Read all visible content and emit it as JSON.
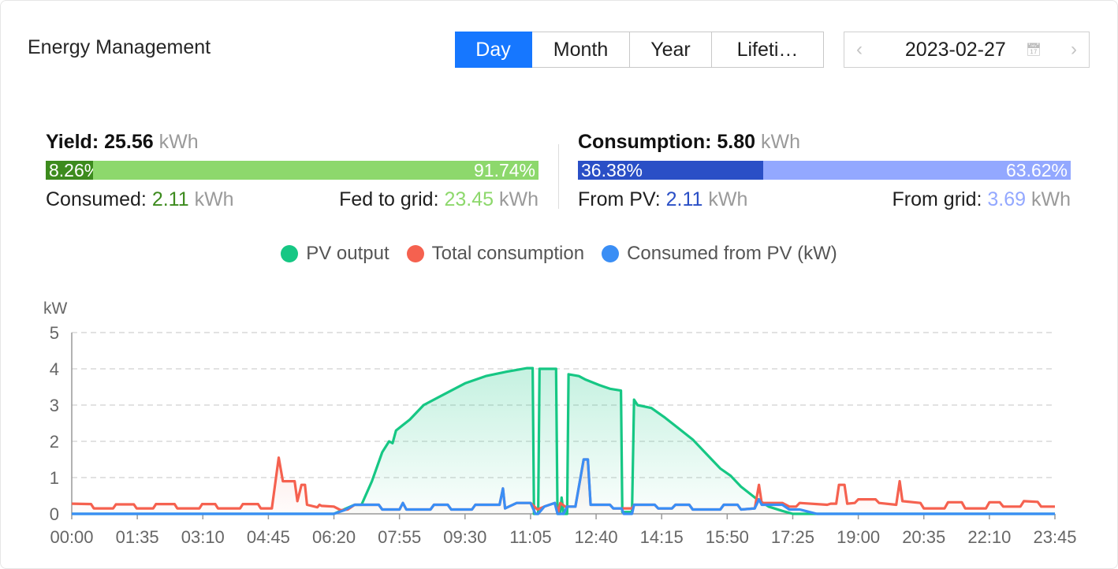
{
  "header": {
    "title": "Energy Management",
    "periods": [
      "Day",
      "Month",
      "Year",
      "Lifeti…"
    ],
    "active_period": "Day",
    "date": "2023-02-27",
    "prev_icon": "chevron-left-icon",
    "next_icon": "chevron-right-icon",
    "calendar_icon": "calendar-icon"
  },
  "yield": {
    "label": "Yield:",
    "value": "25.56",
    "unit": "kWh",
    "pct_consumed": "8.26%",
    "pct_fed": "91.74%",
    "consumed_fraction": 0.0826,
    "consumed_label": "Consumed:",
    "consumed_value": "2.11",
    "consumed_unit": "kWh",
    "fed_label": "Fed to grid:",
    "fed_value": "23.45",
    "fed_unit": "kWh",
    "colors": {
      "consumed": "#3d8b1e",
      "fed": "#8dd86c"
    }
  },
  "consumption": {
    "label": "Consumption:",
    "value": "5.80",
    "unit": "kWh",
    "pct_pv": "36.38%",
    "pct_grid": "63.62%",
    "pv_fraction": 0.3638,
    "pv_label": "From PV:",
    "pv_value": "2.11",
    "pv_unit": "kWh",
    "grid_label": "From grid:",
    "grid_value": "3.69",
    "grid_unit": "kWh",
    "colors": {
      "pv": "#2a4fc6",
      "grid": "#93a8ff"
    }
  },
  "chart_data": {
    "type": "line",
    "ylabel": "kW",
    "ylim": [
      0,
      5
    ],
    "yticks": [
      "0",
      "1",
      "2",
      "3",
      "4",
      "5"
    ],
    "xticks": [
      "00:00",
      "01:35",
      "03:10",
      "04:45",
      "06:20",
      "07:55",
      "09:30",
      "11:05",
      "12:40",
      "14:15",
      "15:50",
      "17:25",
      "19:00",
      "20:35",
      "22:10",
      "23:45"
    ],
    "xlim": [
      "00:00",
      "23:45"
    ],
    "grid": true,
    "legend": "top-center",
    "series": [
      {
        "name": "PV output",
        "color": "#16c784",
        "area": true,
        "points": [
          [
            "00:00",
            0
          ],
          [
            "06:20",
            0
          ],
          [
            "06:50",
            0.25
          ],
          [
            "07:00",
            0.25
          ],
          [
            "07:15",
            0.9
          ],
          [
            "07:30",
            1.7
          ],
          [
            "07:40",
            2.0
          ],
          [
            "07:45",
            1.95
          ],
          [
            "07:50",
            2.3
          ],
          [
            "08:10",
            2.6
          ],
          [
            "08:30",
            3.0
          ],
          [
            "09:00",
            3.3
          ],
          [
            "09:30",
            3.6
          ],
          [
            "10:00",
            3.8
          ],
          [
            "10:30",
            3.92
          ],
          [
            "11:00",
            4.02
          ],
          [
            "11:08",
            4.02
          ],
          [
            "11:10",
            0
          ],
          [
            "11:16",
            0
          ],
          [
            "11:18",
            4.0
          ],
          [
            "11:42",
            4.0
          ],
          [
            "11:44",
            0
          ],
          [
            "11:48",
            0
          ],
          [
            "11:50",
            0.45
          ],
          [
            "11:53",
            0
          ],
          [
            "11:58",
            0
          ],
          [
            "12:00",
            3.85
          ],
          [
            "12:15",
            3.8
          ],
          [
            "12:25",
            3.7
          ],
          [
            "12:45",
            3.55
          ],
          [
            "13:00",
            3.45
          ],
          [
            "13:16",
            3.4
          ],
          [
            "13:18",
            0.05
          ],
          [
            "13:32",
            0.05
          ],
          [
            "13:35",
            3.15
          ],
          [
            "13:40",
            3.0
          ],
          [
            "14:00",
            2.92
          ],
          [
            "14:20",
            2.65
          ],
          [
            "14:40",
            2.35
          ],
          [
            "15:00",
            2.05
          ],
          [
            "15:20",
            1.65
          ],
          [
            "15:40",
            1.25
          ],
          [
            "15:55",
            1.05
          ],
          [
            "16:10",
            0.75
          ],
          [
            "16:30",
            0.45
          ],
          [
            "16:50",
            0.2
          ],
          [
            "17:10",
            0.08
          ],
          [
            "17:25",
            0
          ],
          [
            "23:45",
            0
          ]
        ]
      },
      {
        "name": "Total consumption",
        "color": "#f5614f",
        "area": true,
        "points": [
          [
            "00:00",
            0.28
          ],
          [
            "00:28",
            0.27
          ],
          [
            "00:32",
            0.15
          ],
          [
            "01:00",
            0.15
          ],
          [
            "01:04",
            0.26
          ],
          [
            "01:30",
            0.26
          ],
          [
            "01:34",
            0.15
          ],
          [
            "01:58",
            0.15
          ],
          [
            "02:02",
            0.27
          ],
          [
            "02:29",
            0.27
          ],
          [
            "02:33",
            0.15
          ],
          [
            "03:05",
            0.15
          ],
          [
            "03:09",
            0.27
          ],
          [
            "03:28",
            0.27
          ],
          [
            "03:32",
            0.15
          ],
          [
            "04:04",
            0.15
          ],
          [
            "04:08",
            0.27
          ],
          [
            "04:30",
            0.27
          ],
          [
            "04:34",
            0.15
          ],
          [
            "04:50",
            0.15
          ],
          [
            "05:00",
            1.55
          ],
          [
            "05:06",
            0.9
          ],
          [
            "05:23",
            0.9
          ],
          [
            "05:27",
            0.35
          ],
          [
            "05:33",
            0.8
          ],
          [
            "05:38",
            0.8
          ],
          [
            "05:41",
            0.25
          ],
          [
            "05:56",
            0.18
          ],
          [
            "05:59",
            0.25
          ],
          [
            "06:02",
            0.22
          ],
          [
            "06:20",
            0.2
          ],
          [
            "06:30",
            0.1
          ],
          [
            "06:40",
            0.12
          ],
          [
            "06:50",
            0.25
          ],
          [
            "07:25",
            0.25
          ],
          [
            "07:30",
            0.12
          ],
          [
            "07:55",
            0.12
          ],
          [
            "08:00",
            0.3
          ],
          [
            "08:05",
            0.12
          ],
          [
            "08:40",
            0.12
          ],
          [
            "08:45",
            0.25
          ],
          [
            "09:05",
            0.25
          ],
          [
            "09:10",
            0.12
          ],
          [
            "09:40",
            0.12
          ],
          [
            "09:45",
            0.25
          ],
          [
            "10:20",
            0.25
          ],
          [
            "10:25",
            0.7
          ],
          [
            "10:28",
            0.15
          ],
          [
            "10:45",
            0.3
          ],
          [
            "11:05",
            0.3
          ],
          [
            "11:15",
            0.12
          ],
          [
            "11:25",
            0.2
          ],
          [
            "11:40",
            0.3
          ],
          [
            "11:45",
            0.05
          ],
          [
            "11:48",
            0.3
          ],
          [
            "11:55",
            0.2
          ],
          [
            "12:00",
            0.2
          ],
          [
            "12:10",
            0.2
          ],
          [
            "12:22",
            1.5
          ],
          [
            "12:28",
            1.5
          ],
          [
            "12:32",
            0.25
          ],
          [
            "13:00",
            0.25
          ],
          [
            "13:05",
            0.15
          ],
          [
            "13:20",
            0.15
          ],
          [
            "13:32",
            0.15
          ],
          [
            "13:35",
            0.25
          ],
          [
            "14:05",
            0.25
          ],
          [
            "14:10",
            0.15
          ],
          [
            "14:30",
            0.15
          ],
          [
            "14:35",
            0.25
          ],
          [
            "14:55",
            0.25
          ],
          [
            "15:00",
            0.12
          ],
          [
            "15:40",
            0.12
          ],
          [
            "15:45",
            0.25
          ],
          [
            "16:05",
            0.25
          ],
          [
            "16:10",
            0.12
          ],
          [
            "16:30",
            0.15
          ],
          [
            "16:36",
            0.8
          ],
          [
            "16:40",
            0.3
          ],
          [
            "17:10",
            0.3
          ],
          [
            "17:20",
            0.2
          ],
          [
            "17:30",
            0.2
          ],
          [
            "17:35",
            0.3
          ],
          [
            "18:15",
            0.25
          ],
          [
            "18:20",
            0.28
          ],
          [
            "18:28",
            0.28
          ],
          [
            "18:32",
            0.8
          ],
          [
            "18:40",
            0.8
          ],
          [
            "18:44",
            0.28
          ],
          [
            "18:55",
            0.3
          ],
          [
            "19:00",
            0.4
          ],
          [
            "19:25",
            0.4
          ],
          [
            "19:30",
            0.3
          ],
          [
            "19:55",
            0.25
          ],
          [
            "20:00",
            0.9
          ],
          [
            "20:04",
            0.35
          ],
          [
            "20:30",
            0.3
          ],
          [
            "20:35",
            0.15
          ],
          [
            "21:05",
            0.15
          ],
          [
            "21:10",
            0.32
          ],
          [
            "21:30",
            0.32
          ],
          [
            "21:35",
            0.15
          ],
          [
            "22:05",
            0.15
          ],
          [
            "22:10",
            0.32
          ],
          [
            "22:25",
            0.32
          ],
          [
            "22:30",
            0.2
          ],
          [
            "22:55",
            0.2
          ],
          [
            "23:00",
            0.35
          ],
          [
            "23:20",
            0.33
          ],
          [
            "23:25",
            0.2
          ],
          [
            "23:45",
            0.2
          ]
        ]
      },
      {
        "name": "Consumed from PV (kW)",
        "color": "#3a8ef5",
        "area": false,
        "points": [
          [
            "00:00",
            0
          ],
          [
            "06:20",
            0
          ],
          [
            "06:35",
            0.1
          ],
          [
            "06:50",
            0.25
          ],
          [
            "07:25",
            0.25
          ],
          [
            "07:30",
            0.12
          ],
          [
            "07:55",
            0.12
          ],
          [
            "08:00",
            0.3
          ],
          [
            "08:05",
            0.12
          ],
          [
            "08:40",
            0.12
          ],
          [
            "08:45",
            0.25
          ],
          [
            "09:05",
            0.25
          ],
          [
            "09:10",
            0.12
          ],
          [
            "09:40",
            0.12
          ],
          [
            "09:45",
            0.25
          ],
          [
            "10:20",
            0.25
          ],
          [
            "10:25",
            0.7
          ],
          [
            "10:28",
            0.15
          ],
          [
            "10:45",
            0.3
          ],
          [
            "11:05",
            0.3
          ],
          [
            "11:12",
            0
          ],
          [
            "11:16",
            0
          ],
          [
            "11:25",
            0.2
          ],
          [
            "11:40",
            0.3
          ],
          [
            "11:44",
            0
          ],
          [
            "11:53",
            0
          ],
          [
            "11:58",
            0.2
          ],
          [
            "12:10",
            0.2
          ],
          [
            "12:22",
            1.5
          ],
          [
            "12:28",
            1.5
          ],
          [
            "12:32",
            0.25
          ],
          [
            "13:00",
            0.25
          ],
          [
            "13:05",
            0.15
          ],
          [
            "13:17",
            0.15
          ],
          [
            "13:20",
            0
          ],
          [
            "13:32",
            0
          ],
          [
            "13:35",
            0.25
          ],
          [
            "14:05",
            0.25
          ],
          [
            "14:10",
            0.15
          ],
          [
            "14:30",
            0.15
          ],
          [
            "14:35",
            0.25
          ],
          [
            "14:55",
            0.25
          ],
          [
            "15:00",
            0.12
          ],
          [
            "15:40",
            0.12
          ],
          [
            "15:45",
            0.25
          ],
          [
            "16:05",
            0.25
          ],
          [
            "16:10",
            0.12
          ],
          [
            "16:30",
            0.15
          ],
          [
            "16:36",
            0.4
          ],
          [
            "16:40",
            0.25
          ],
          [
            "17:10",
            0.25
          ],
          [
            "17:20",
            0.12
          ],
          [
            "17:35",
            0.12
          ],
          [
            "18:00",
            0
          ],
          [
            "23:45",
            0
          ]
        ]
      }
    ]
  }
}
